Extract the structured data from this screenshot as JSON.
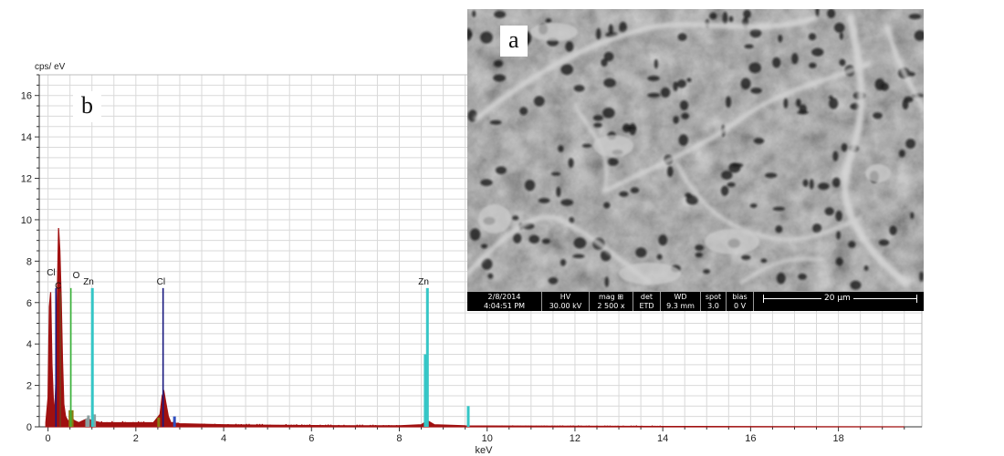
{
  "chart_data": {
    "type": "bar",
    "ylabel": "cps/ eV",
    "xlabel": "keV",
    "xlim": [
      -0.2,
      19.9
    ],
    "ylim": [
      0,
      17
    ],
    "xticks": [
      0,
      2,
      4,
      6,
      8,
      10,
      12,
      14,
      16,
      18
    ],
    "yticks": [
      0,
      2,
      4,
      6,
      8,
      10,
      12,
      14,
      16
    ],
    "grid": true,
    "panel_label": "b",
    "spectrum_color": "#a01010",
    "spectrum": [
      [
        -0.05,
        0.2
      ],
      [
        0.0,
        1.4
      ],
      [
        0.03,
        5.8
      ],
      [
        0.06,
        6.5
      ],
      [
        0.09,
        3.0
      ],
      [
        0.12,
        1.4
      ],
      [
        0.15,
        0.6
      ],
      [
        0.18,
        2.3
      ],
      [
        0.21,
        6.3
      ],
      [
        0.24,
        9.6
      ],
      [
        0.27,
        8.5
      ],
      [
        0.3,
        6.2
      ],
      [
        0.33,
        3.2
      ],
      [
        0.36,
        1.1
      ],
      [
        0.4,
        0.5
      ],
      [
        0.45,
        0.3
      ],
      [
        0.5,
        0.3
      ],
      [
        0.55,
        0.4
      ],
      [
        0.6,
        0.3
      ],
      [
        0.7,
        0.2
      ],
      [
        0.8,
        0.3
      ],
      [
        0.9,
        0.4
      ],
      [
        1.0,
        0.3
      ],
      [
        1.2,
        0.2
      ],
      [
        1.5,
        0.2
      ],
      [
        2.0,
        0.2
      ],
      [
        2.4,
        0.2
      ],
      [
        2.55,
        0.6
      ],
      [
        2.6,
        1.5
      ],
      [
        2.64,
        1.7
      ],
      [
        2.68,
        1.2
      ],
      [
        2.74,
        0.5
      ],
      [
        2.8,
        0.2
      ],
      [
        3.0,
        0.15
      ],
      [
        4.0,
        0.1
      ],
      [
        5.0,
        0.08
      ],
      [
        6.0,
        0.06
      ],
      [
        7.0,
        0.05
      ],
      [
        8.0,
        0.05
      ],
      [
        8.5,
        0.1
      ],
      [
        8.64,
        0.3
      ],
      [
        8.8,
        0.1
      ],
      [
        9.5,
        0.05
      ],
      [
        10.0,
        0.04
      ],
      [
        12.0,
        0.03
      ],
      [
        14.0,
        0.02
      ],
      [
        16.0,
        0.01
      ],
      [
        19.5,
        0.0
      ]
    ],
    "lines": [
      {
        "label": "Cl",
        "x": 0.18,
        "height": 6.7,
        "color": "#1a1a80"
      },
      {
        "label": "C",
        "x": 0.28,
        "height": 6.5,
        "color": "#7a3b1c"
      },
      {
        "label": "O",
        "x": 0.52,
        "height": 6.7,
        "color": "#3cb43c"
      },
      {
        "label": "Zn",
        "x": 1.01,
        "height": 6.7,
        "color": "#35c6c6"
      },
      {
        "label": "Cl",
        "x": 2.62,
        "height": 6.7,
        "color": "#1a1a80"
      },
      {
        "label": "Zn",
        "x": 8.64,
        "height": 6.7,
        "color": "#35c6c6"
      }
    ],
    "minor_bars": [
      {
        "x": 0.5,
        "height": 0.8,
        "color": "#8a7a10"
      },
      {
        "x": 0.55,
        "height": 0.8,
        "color": "#8a7a10"
      },
      {
        "x": 0.88,
        "height": 0.4,
        "color": "#8aa0a0"
      },
      {
        "x": 0.92,
        "height": 0.55,
        "color": "#8aa0a0"
      },
      {
        "x": 1.06,
        "height": 0.6,
        "color": "#8aa0a0"
      },
      {
        "x": 2.52,
        "height": 0.45,
        "color": "#8a7a10"
      },
      {
        "x": 2.88,
        "height": 0.5,
        "color": "#3050c0"
      },
      {
        "x": 8.59,
        "height": 3.5,
        "color": "#35c6c6"
      },
      {
        "x": 9.57,
        "height": 1.0,
        "color": "#35c6c6"
      }
    ]
  },
  "sem": {
    "panel_label": "a",
    "info": [
      {
        "header": "2/8/2014",
        "value": "4:04:51 PM"
      },
      {
        "header": "HV",
        "value": "30.00 kV"
      },
      {
        "header": "mag ⊞",
        "value": "2 500 x"
      },
      {
        "header": "det",
        "value": "ETD"
      },
      {
        "header": "WD",
        "value": "9.3 mm"
      },
      {
        "header": "spot",
        "value": "3.0"
      },
      {
        "header": "bias",
        "value": "0 V"
      }
    ],
    "scale_bar": "20 µm"
  }
}
